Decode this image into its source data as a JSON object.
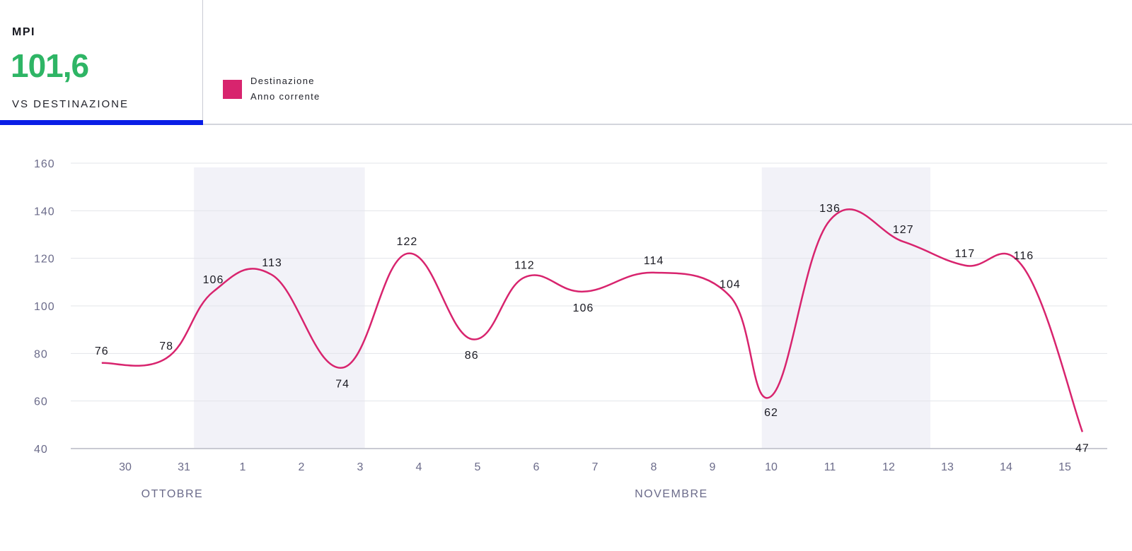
{
  "kpi": {
    "title": "MPI",
    "value": "101,6",
    "subtitle": "VS DESTINAZIONE"
  },
  "legend": {
    "line1": "Destinazione",
    "line2": "Anno corrente",
    "color": "#d8246e"
  },
  "chart_data": {
    "type": "line",
    "title": "",
    "xlabel": "",
    "ylabel": "",
    "ylim": [
      40,
      160
    ],
    "yticks": [
      40,
      60,
      80,
      100,
      120,
      140,
      160
    ],
    "grid": true,
    "legend_position": "top-left",
    "x_ticks": [
      "30",
      "31",
      "1",
      "2",
      "3",
      "4",
      "5",
      "6",
      "7",
      "8",
      "9",
      "10",
      "11",
      "12",
      "13",
      "14",
      "15"
    ],
    "months": [
      {
        "label": "OTTOBRE",
        "center": 0.8
      },
      {
        "label": "NOVEMBRE",
        "center": 9.3
      }
    ],
    "highlight_ranges": [
      [
        1.17,
        4.08
      ],
      [
        10.84,
        13.71
      ]
    ],
    "series": [
      {
        "name": "Destinazione Anno corrente",
        "color": "#d8246e",
        "points": [
          {
            "x": -0.4,
            "y": 76
          },
          {
            "x": 0.7,
            "y": 78
          },
          {
            "x": 1.5,
            "y": 106
          },
          {
            "x": 2.5,
            "y": 113
          },
          {
            "x": 3.7,
            "y": 74
          },
          {
            "x": 4.8,
            "y": 122
          },
          {
            "x": 5.9,
            "y": 86
          },
          {
            "x": 6.8,
            "y": 112
          },
          {
            "x": 7.8,
            "y": 106
          },
          {
            "x": 9.0,
            "y": 114
          },
          {
            "x": 10.3,
            "y": 104
          },
          {
            "x": 11.0,
            "y": 62
          },
          {
            "x": 12.0,
            "y": 136
          },
          {
            "x": 13.25,
            "y": 127
          },
          {
            "x": 14.3,
            "y": 117
          },
          {
            "x": 15.3,
            "y": 116
          },
          {
            "x": 16.3,
            "y": 47
          }
        ]
      }
    ]
  }
}
